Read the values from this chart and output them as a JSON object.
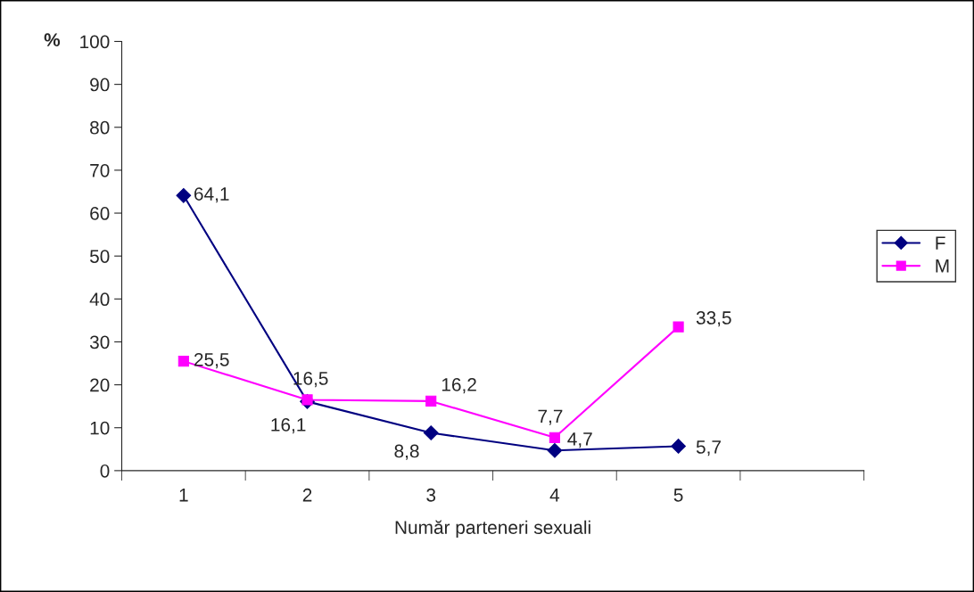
{
  "chart_data": {
    "type": "line",
    "ylabel": "%",
    "xlabel": "Număr parteneri sexuali",
    "categories": [
      "1",
      "2",
      "3",
      "4",
      "5",
      null
    ],
    "series": [
      {
        "name": "F",
        "color": "#000080",
        "marker": "diamond",
        "values": [
          64.1,
          16.1,
          8.8,
          4.7,
          5.7,
          null
        ],
        "value_labels": [
          "64,1",
          "16,1",
          "8,8",
          "4,7",
          "5,7",
          null
        ]
      },
      {
        "name": "M",
        "color": "#ff00ff",
        "marker": "square",
        "values": [
          25.5,
          16.5,
          16.2,
          7.7,
          33.5,
          null
        ],
        "value_labels": [
          "25,5",
          "16,5",
          "16,2",
          "7,7",
          "33,5",
          null
        ]
      }
    ],
    "ylim": [
      0,
      100
    ],
    "yticks": [
      0,
      10,
      20,
      30,
      40,
      50,
      60,
      70,
      80,
      90,
      100
    ],
    "grid": false,
    "legend": "right"
  }
}
